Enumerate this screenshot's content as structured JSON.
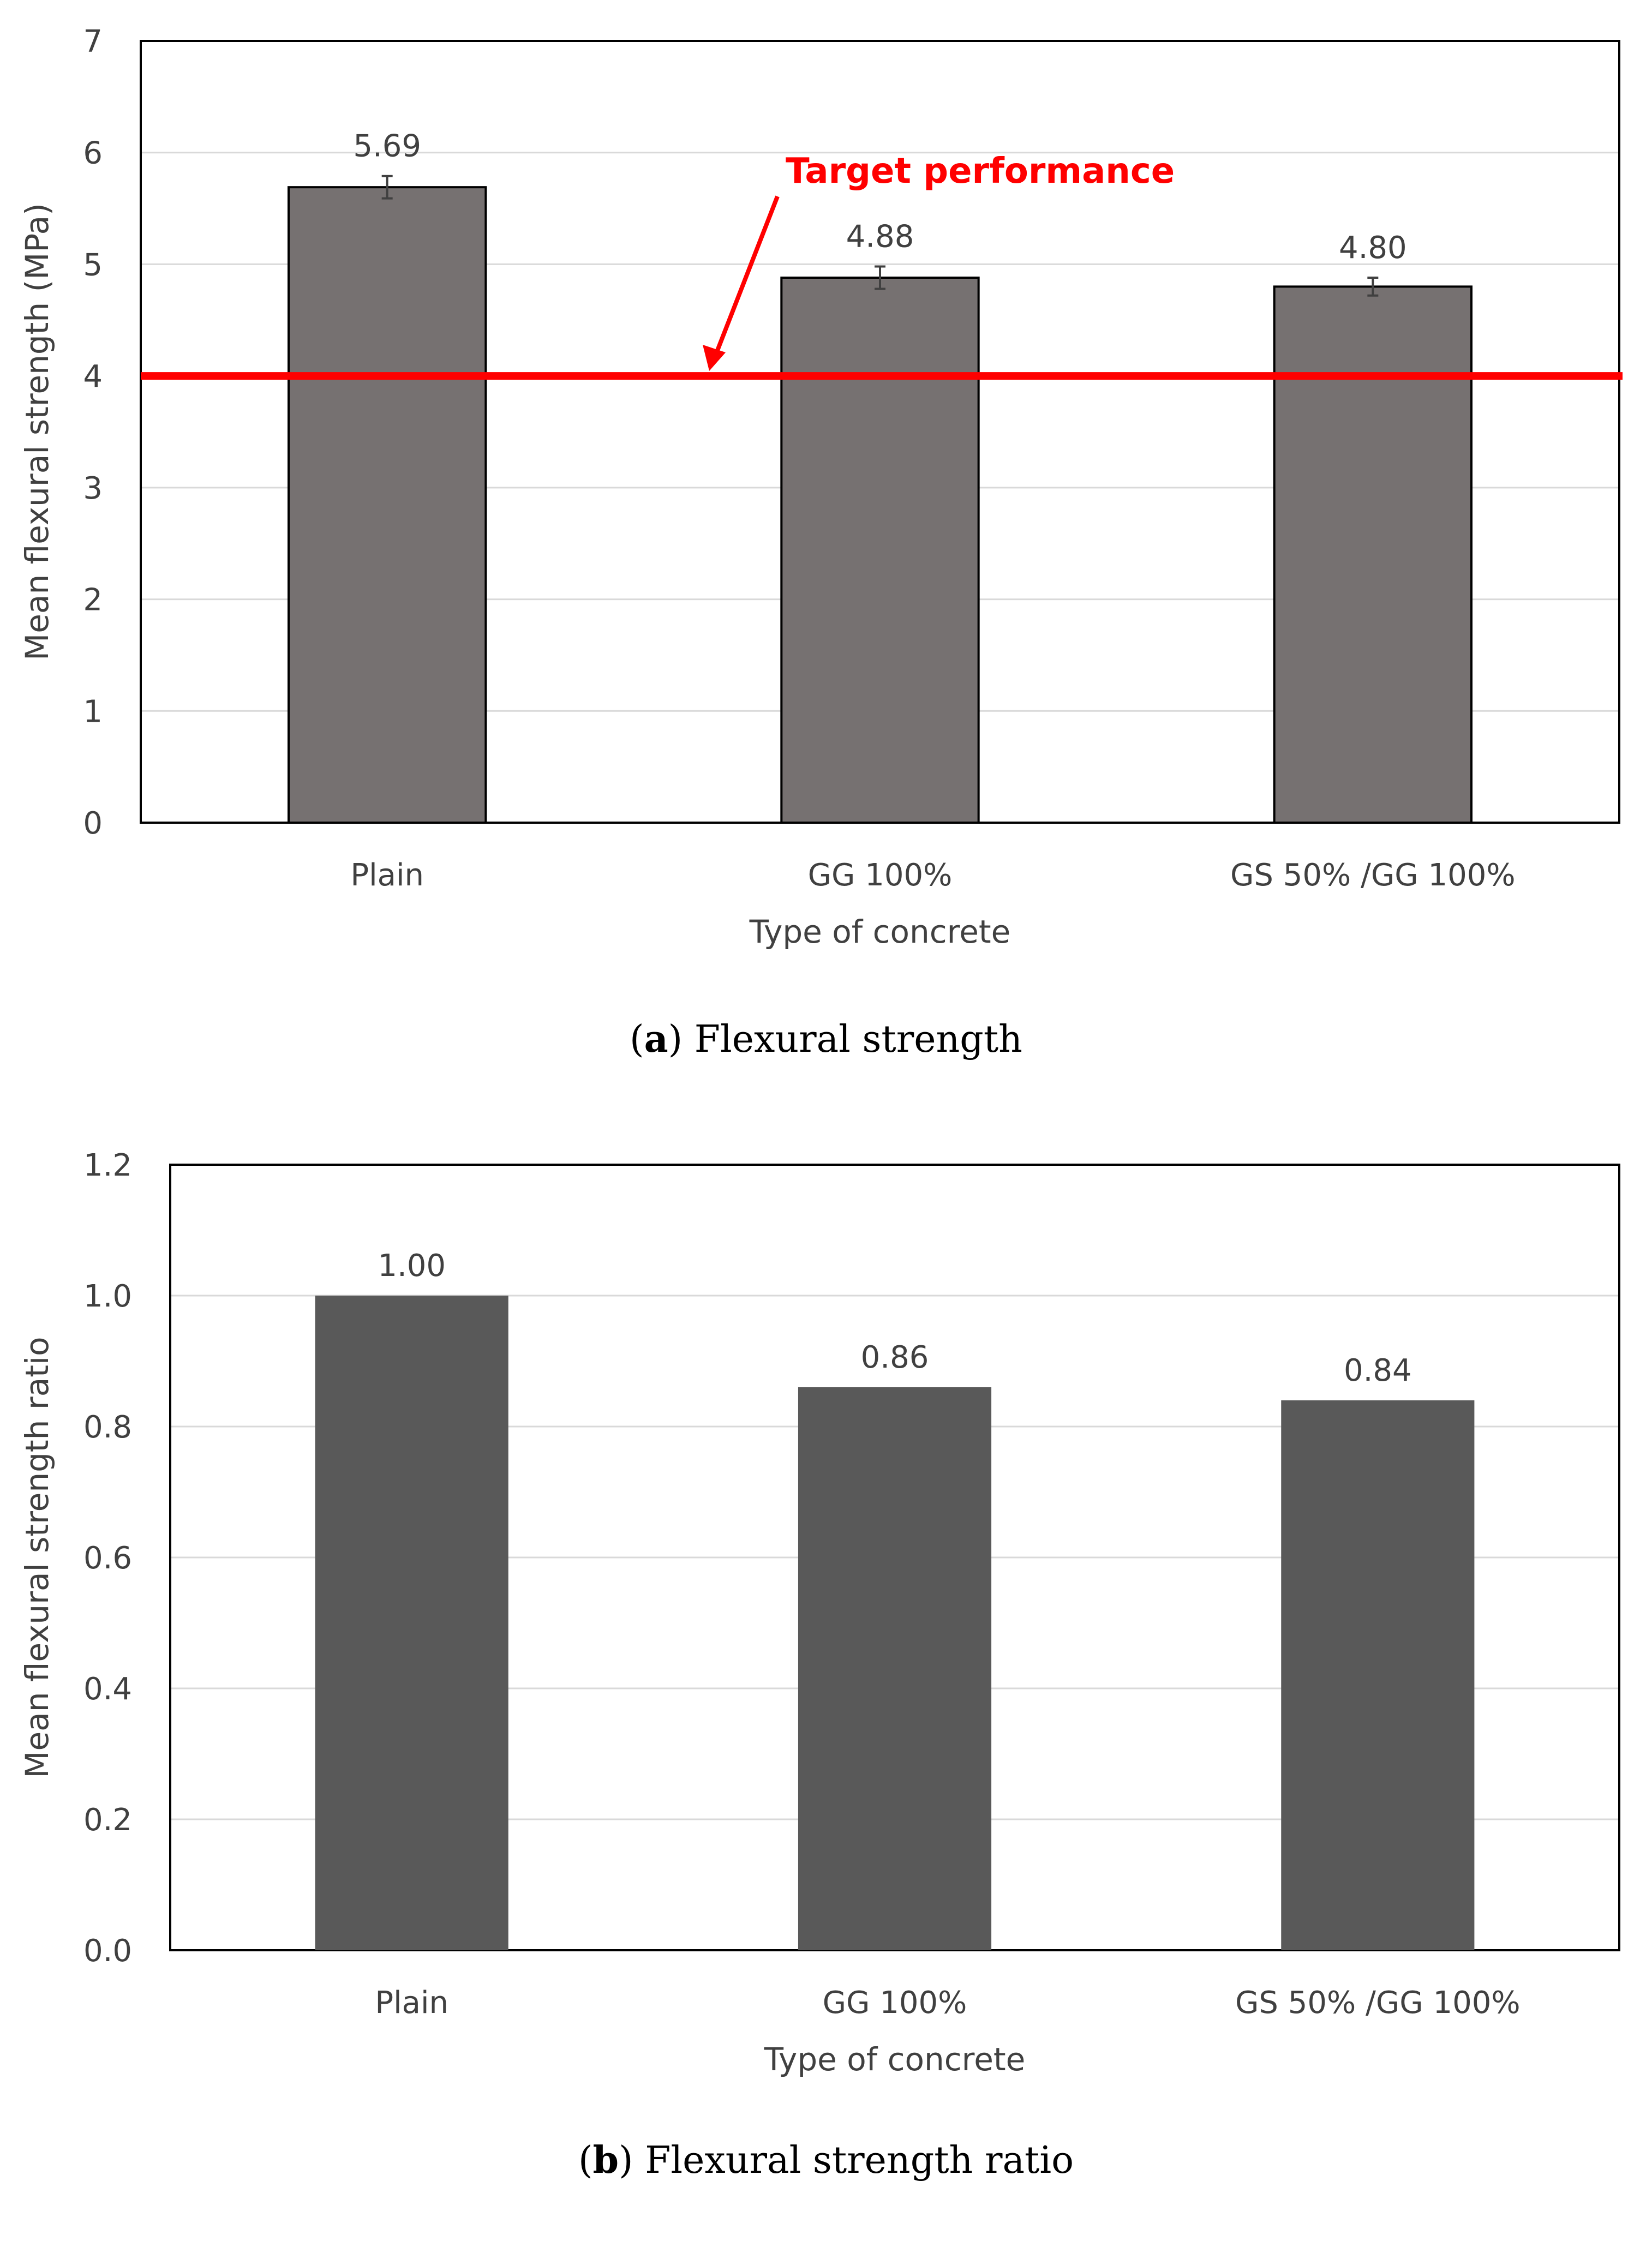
{
  "chart_data": [
    {
      "type": "bar",
      "caption_letter": "a",
      "caption_text": "Flexural strength",
      "title": "",
      "xlabel": "Type of concrete",
      "ylabel": "Mean flexural strength (MPa)",
      "categories": [
        "Plain",
        "GG 100%",
        "GS 50% /GG 100%"
      ],
      "values": [
        5.69,
        4.88,
        4.8
      ],
      "value_labels": [
        "5.69",
        "4.88",
        "4.80"
      ],
      "error": [
        0.1,
        0.1,
        0.08
      ],
      "ylim": [
        0,
        7
      ],
      "yticks": [
        0,
        1,
        2,
        3,
        4,
        5,
        6,
        7
      ],
      "ytick_labels": [
        "0",
        "1",
        "2",
        "3",
        "4",
        "5",
        "6",
        "7"
      ],
      "grid": true,
      "bar_color": "#767171",
      "bar_edge_color": "#000000",
      "target_line": {
        "value": 4.0,
        "label": "Target performance",
        "color": "#ff0000"
      }
    },
    {
      "type": "bar",
      "caption_letter": "b",
      "caption_text": "Flexural strength ratio",
      "title": "",
      "xlabel": "Type of concrete",
      "ylabel": "Mean flexural strength ratio",
      "categories": [
        "Plain",
        "GG 100%",
        "GS 50% /GG 100%"
      ],
      "values": [
        1.0,
        0.86,
        0.84
      ],
      "value_labels": [
        "1.00",
        "0.86",
        "0.84"
      ],
      "ylim": [
        0,
        1.2
      ],
      "yticks": [
        0,
        0.2,
        0.4,
        0.6,
        0.8,
        1.0,
        1.2
      ],
      "ytick_labels": [
        "0.0",
        "0.2",
        "0.4",
        "0.6",
        "0.8",
        "1.0",
        "1.2"
      ],
      "grid": true,
      "bar_color": "#595959"
    }
  ]
}
